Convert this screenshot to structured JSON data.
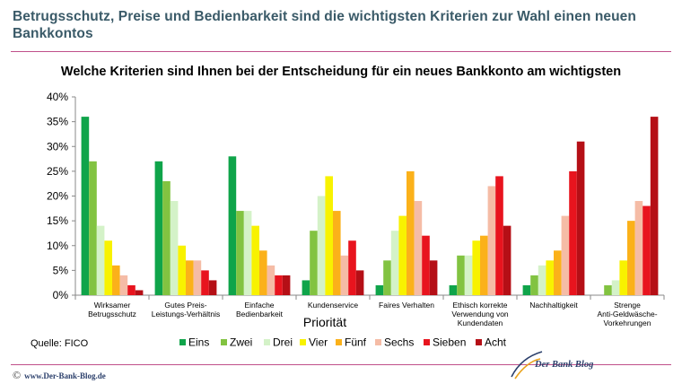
{
  "headline": "Betrugsschutz, Preise und Bedienbarkeit sind die wichtigsten Kriterien zur Wahl einen neuen Bankkontos",
  "source": "Quelle: FICO",
  "footer": {
    "copyright_symbol": "©",
    "url": "www.Der-Bank-Blog.de",
    "brand": "Der Bank Blog"
  },
  "chart_data": {
    "type": "bar",
    "title": "Welche Kriterien sind Ihnen bei der Entscheidung für ein neues Bankkonto am wichtigsten",
    "xlabel": "Priorität",
    "ylabel": "",
    "ylim": [
      0,
      40
    ],
    "yticks": [
      "0%",
      "5%",
      "10%",
      "15%",
      "20%",
      "25%",
      "30%",
      "35%",
      "40%"
    ],
    "grid": false,
    "legend_position": "bottom",
    "categories": [
      [
        "Wirksamer",
        "Betrugsschutz"
      ],
      [
        "Gutes Preis-",
        "Leistungs-Verhältnis"
      ],
      [
        "Einfache",
        "Bedienbarkeit"
      ],
      [
        "Kundenservice"
      ],
      [
        "Faires Verhalten"
      ],
      [
        "Ethisch korrekte",
        "Verwendung von",
        "Kundendaten"
      ],
      [
        "Nachhaltigkeit"
      ],
      [
        "Strenge",
        "Anti-Geldwäsche-",
        "Vorkehrungen"
      ]
    ],
    "series": [
      {
        "name": "Eins",
        "color": "#0fa44a",
        "values": [
          36,
          27,
          28,
          3,
          2,
          2,
          2,
          0
        ]
      },
      {
        "name": "Zwei",
        "color": "#82c341",
        "values": [
          27,
          23,
          17,
          13,
          7,
          8,
          4,
          2
        ]
      },
      {
        "name": "Drei",
        "color": "#d4f2c8",
        "values": [
          14,
          19,
          17,
          20,
          13,
          8,
          6,
          3
        ]
      },
      {
        "name": "Vier",
        "color": "#f8f200",
        "values": [
          11,
          10,
          14,
          24,
          16,
          11,
          7,
          7
        ]
      },
      {
        "name": "Fünf",
        "color": "#fbb11a",
        "values": [
          6,
          7,
          9,
          17,
          25,
          12,
          9,
          15
        ]
      },
      {
        "name": "Sechs",
        "color": "#f5bca6",
        "values": [
          4,
          7,
          6,
          8,
          19,
          22,
          16,
          19
        ]
      },
      {
        "name": "Sieben",
        "color": "#e8141e",
        "values": [
          2,
          5,
          4,
          11,
          12,
          24,
          25,
          18
        ]
      },
      {
        "name": "Acht",
        "color": "#b50f16",
        "values": [
          1,
          3,
          4,
          5,
          7,
          14,
          31,
          36
        ]
      }
    ]
  }
}
